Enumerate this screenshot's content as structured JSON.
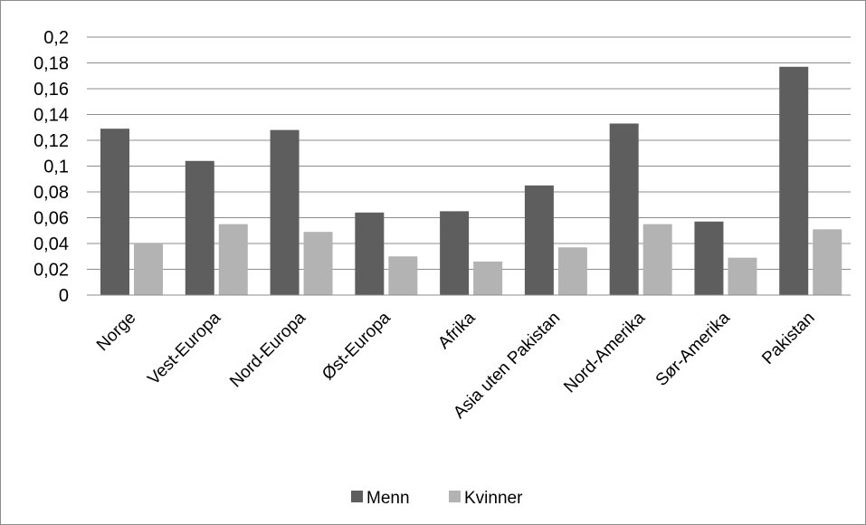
{
  "chart_data": {
    "type": "bar",
    "title": "",
    "xlabel": "",
    "ylabel": "",
    "ylim": [
      0,
      0.2
    ],
    "yticks": [
      "0",
      "0,02",
      "0,04",
      "0,06",
      "0,08",
      "0,1",
      "0,12",
      "0,14",
      "0,16",
      "0,18",
      "0,2"
    ],
    "grid": true,
    "legend_position": "bottom",
    "categories": [
      "Norge",
      "Vest-Europa",
      "Nord-Europa",
      "Øst-Europa",
      "Afrika",
      "Asia uten Pakistan",
      "Nord-Amerika",
      "Sør-Amerika",
      "Pakistan"
    ],
    "series": [
      {
        "name": "Menn",
        "color": "#5e5e5e",
        "values": [
          0.129,
          0.104,
          0.128,
          0.064,
          0.065,
          0.085,
          0.133,
          0.057,
          0.177
        ]
      },
      {
        "name": "Kvinner",
        "color": "#b3b3b3",
        "values": [
          0.04,
          0.055,
          0.049,
          0.03,
          0.026,
          0.037,
          0.055,
          0.029,
          0.051
        ]
      }
    ]
  }
}
